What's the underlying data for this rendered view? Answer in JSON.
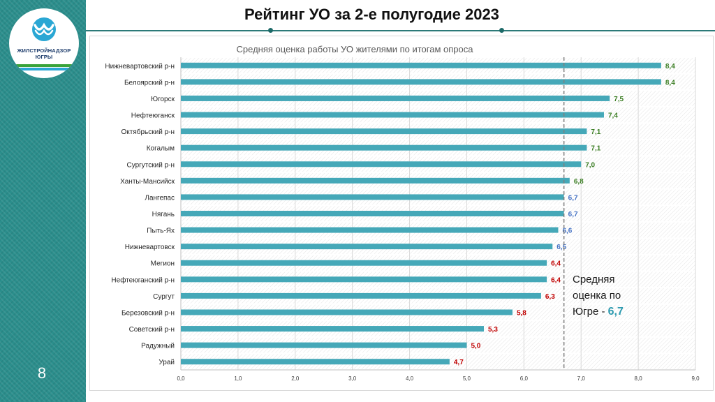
{
  "slide": {
    "title": "Рейтинг УО за 2-е полугодие 2023",
    "page_number": "8",
    "logo": {
      "line1": "ЖИЛСТРОЙНАДЗОР",
      "line2": "ЮГРЫ",
      "icon": "water-wave-logo-icon"
    }
  },
  "colors": {
    "bar": "#45a8b8",
    "label_green": "#3a7d22",
    "label_blue": "#4472c4",
    "label_red": "#c00000",
    "sidebar": "#2b8e8c"
  },
  "chart_data": {
    "type": "bar",
    "orientation": "horizontal",
    "title": "Средняя оценка работы УО жителями по итогам опроса",
    "categories": [
      "Нижневартовский р-н",
      "Белоярский р-н",
      "Югорск",
      "Нефтеюганск",
      "Октябрьский р-н",
      "Когалым",
      "Сургутский р-н",
      "Ханты-Мансийск",
      "Лангепас",
      "Нягань",
      "Пыть-Ях",
      "Нижневартовск",
      "Мегион",
      "Нефтеюганский р-н",
      "Сургут",
      "Березовский р-н",
      "Советский р-н",
      "Радужный",
      "Урай"
    ],
    "values": [
      8.4,
      8.4,
      7.5,
      7.4,
      7.1,
      7.1,
      7.0,
      6.8,
      6.7,
      6.7,
      6.6,
      6.5,
      6.4,
      6.4,
      6.3,
      5.8,
      5.3,
      5.0,
      4.7
    ],
    "value_labels": [
      "8,4",
      "8,4",
      "7,5",
      "7,4",
      "7,1",
      "7,1",
      "7,0",
      "6,8",
      "6,7",
      "6,7",
      "6,6",
      "6,5",
      "6,4",
      "6,4",
      "6,3",
      "5,8",
      "5,3",
      "5,0",
      "4,7"
    ],
    "label_colors": [
      "green",
      "green",
      "green",
      "green",
      "green",
      "green",
      "green",
      "green",
      "blue",
      "blue",
      "blue",
      "blue",
      "red",
      "red",
      "red",
      "red",
      "red",
      "red",
      "red"
    ],
    "xlim": [
      0,
      9
    ],
    "xticks": [
      0,
      1,
      2,
      3,
      4,
      5,
      6,
      7,
      8,
      9
    ],
    "xtick_labels": [
      "0,0",
      "1,0",
      "2,0",
      "3,0",
      "4,0",
      "5,0",
      "6,0",
      "7,0",
      "8,0",
      "9,0"
    ],
    "grid": true,
    "reference_line": {
      "value": 6.7,
      "style": "dashed"
    },
    "annotation": {
      "lines": [
        "Средняя",
        "оценка по",
        "Югре - "
      ],
      "value": "6,7"
    }
  }
}
